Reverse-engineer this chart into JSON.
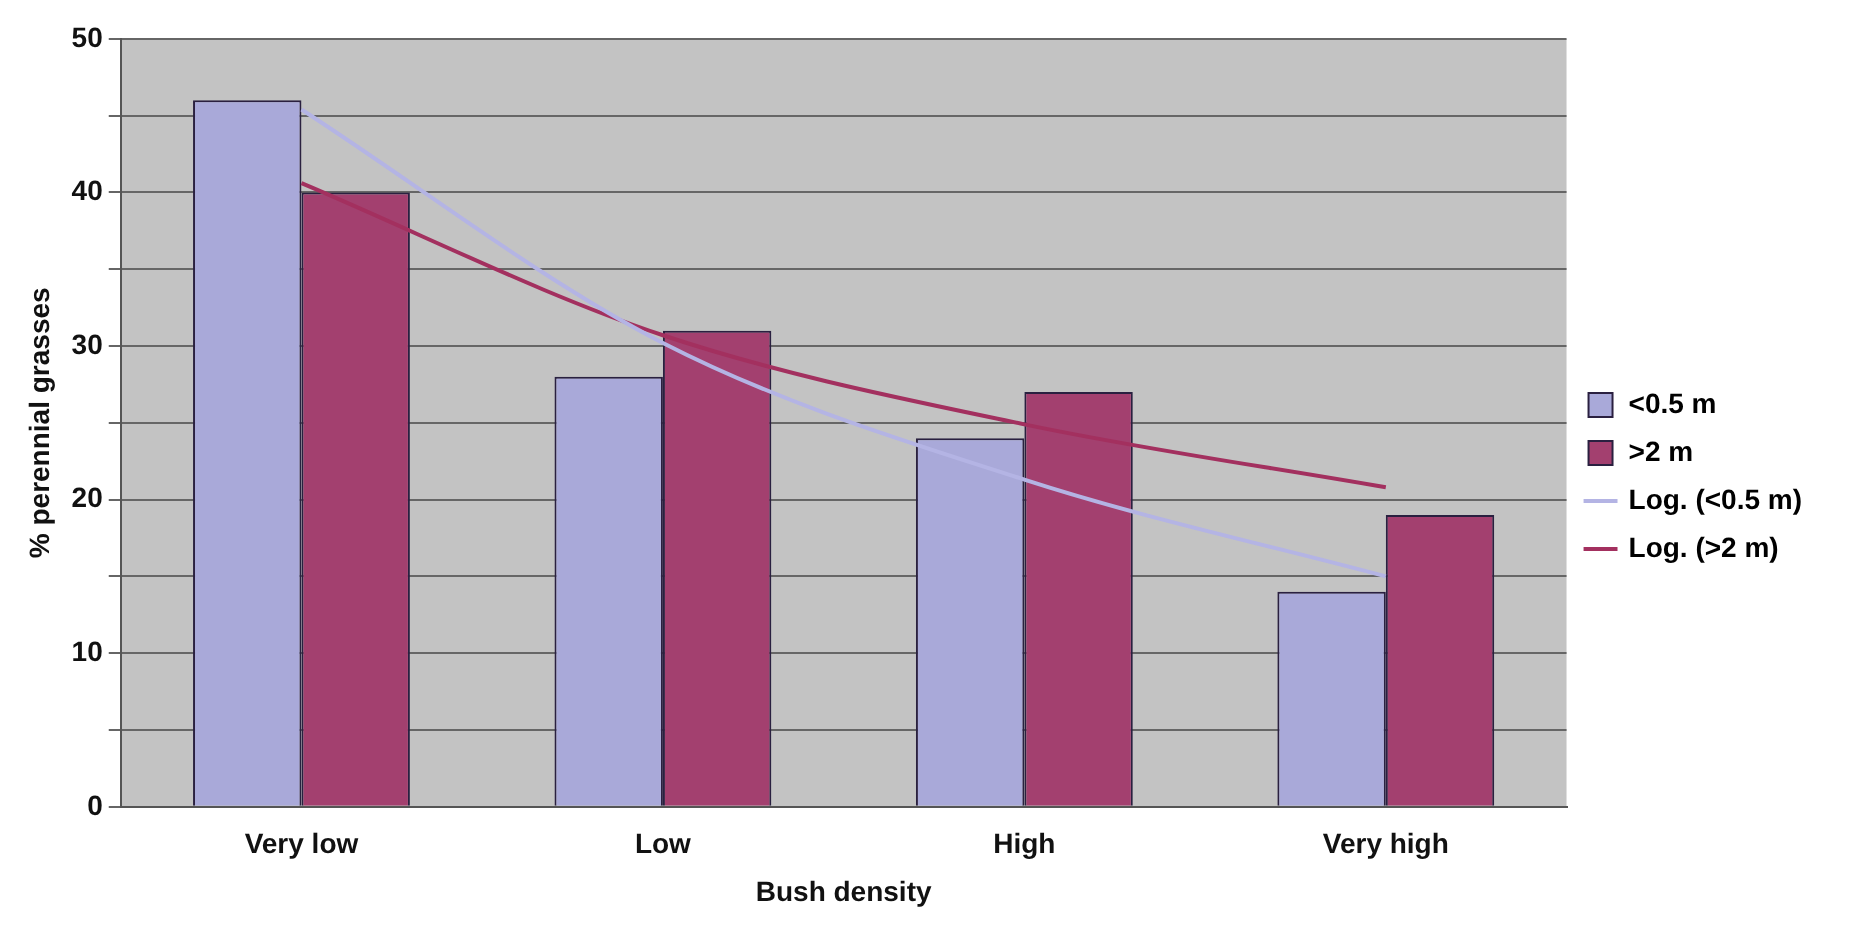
{
  "chart_data": {
    "type": "bar",
    "xlabel": "Bush density",
    "ylabel": "% perennial grasses",
    "categories": [
      "Very low",
      "Low",
      "High",
      "Very high"
    ],
    "series": [
      {
        "name": "<0.5 m",
        "color": "#a9a9d9",
        "values": [
          46,
          28,
          24,
          14
        ]
      },
      {
        "name": ">2 m",
        "color": "#a3406f",
        "values": [
          40,
          31,
          27,
          19
        ]
      },
      {
        "name": "Log. (<0.5 m)",
        "type": "line",
        "color": "#b4b4e4",
        "values": [
          45.4,
          30.2,
          21.3,
          15.0
        ]
      },
      {
        "name": "Log. (>2 m)",
        "type": "line",
        "color": "#a3305f",
        "values": [
          40.6,
          30.7,
          24.9,
          20.8
        ]
      }
    ],
    "ylim": [
      0,
      50
    ],
    "yticks": [
      0,
      {
        "value": 5,
        "label": null
      },
      10,
      {
        "value": 15,
        "label": null
      },
      20,
      {
        "value": 25,
        "label": null
      },
      30,
      {
        "value": 35,
        "label": null
      },
      40,
      {
        "value": 45,
        "label": null
      },
      50
    ],
    "grid": "y",
    "legend": "right",
    "marker": "none",
    "line_style": "solid"
  }
}
